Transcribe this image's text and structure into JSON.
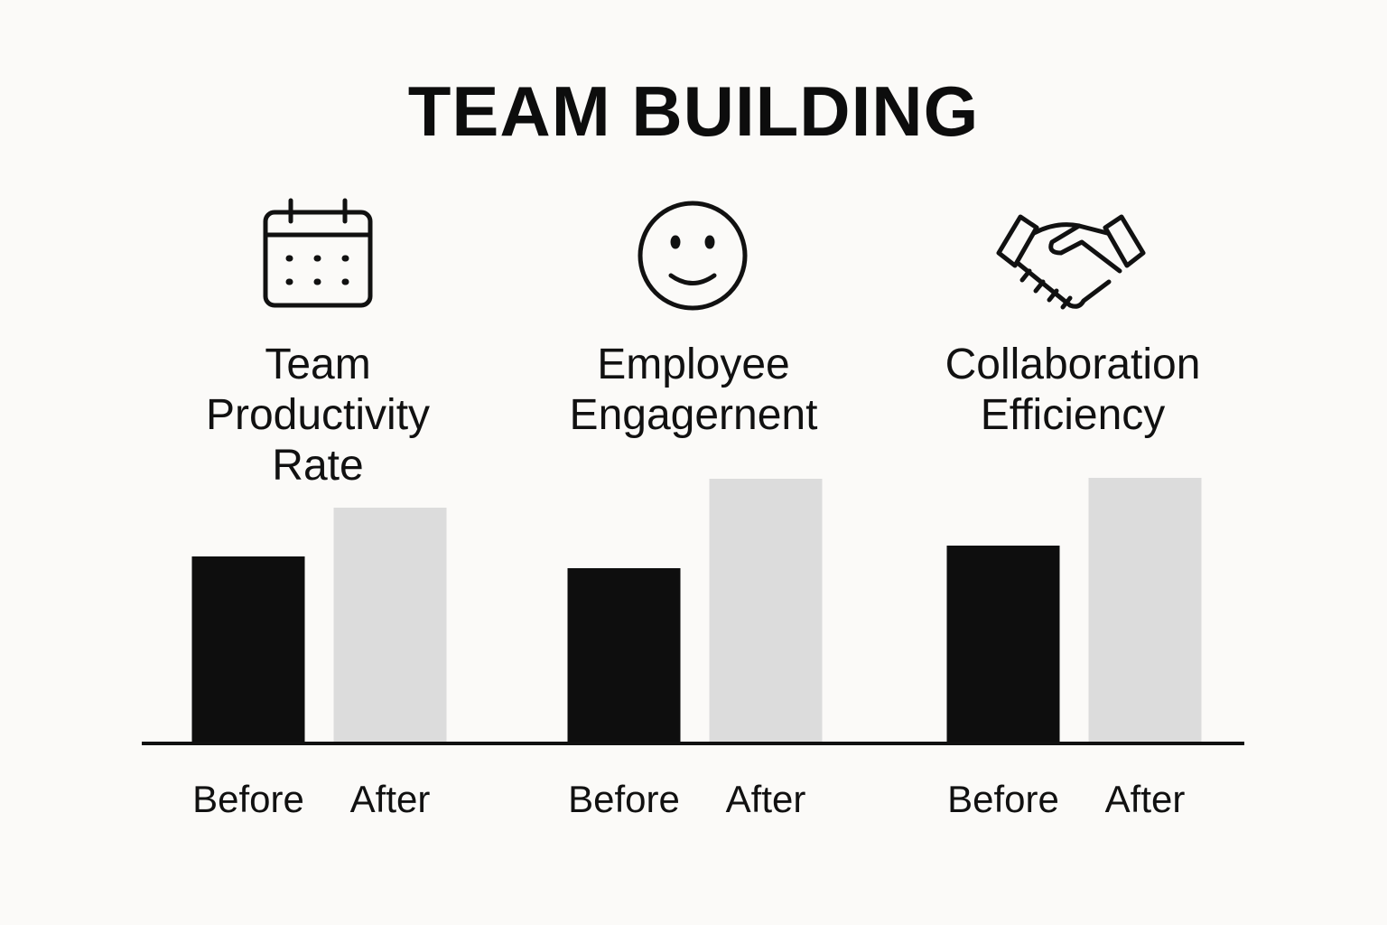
{
  "title": "TEAM BUILDING",
  "chart_data": [
    {
      "type": "bar",
      "title": "Team Productivity Rate",
      "categories": [
        "Before",
        "After"
      ],
      "values": [
        205,
        259
      ],
      "colors": [
        "#0e0e0e",
        "#dcdcdc"
      ],
      "ylim": [
        0,
        300
      ]
    },
    {
      "type": "bar",
      "title": "Employee Engagernent",
      "categories": [
        "Before",
        "After"
      ],
      "values": [
        192,
        291
      ],
      "colors": [
        "#0e0e0e",
        "#dcdcdc"
      ],
      "ylim": [
        0,
        300
      ]
    },
    {
      "type": "bar",
      "title": "Collaboration Efficiency",
      "categories": [
        "Before",
        "After"
      ],
      "values": [
        217,
        292
      ],
      "colors": [
        "#0e0e0e",
        "#dcdcdc"
      ],
      "ylim": [
        0,
        300
      ]
    }
  ]
}
